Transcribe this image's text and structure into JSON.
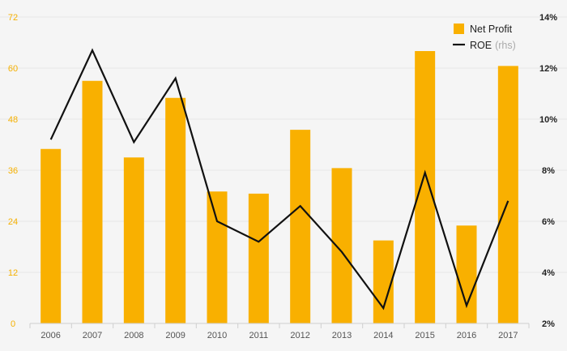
{
  "chart_data": {
    "type": "bar",
    "categories": [
      "2006",
      "2007",
      "2008",
      "2009",
      "2010",
      "2011",
      "2012",
      "2013",
      "2014",
      "2015",
      "2016",
      "2017"
    ],
    "series": [
      {
        "name": "Net Profit",
        "type": "bar",
        "axis": "left",
        "color": "#f9b000",
        "values": [
          41,
          57,
          39,
          53,
          31,
          30.5,
          45.5,
          36.5,
          19.5,
          64,
          23,
          60.5
        ]
      },
      {
        "name": "ROE",
        "name_suffix": "(rhs)",
        "type": "line",
        "axis": "right",
        "color": "#111111",
        "values": [
          9.2,
          12.7,
          9.1,
          11.6,
          6.0,
          5.2,
          6.6,
          4.8,
          2.6,
          7.9,
          2.7,
          6.8
        ]
      }
    ],
    "y_left": {
      "ylim": [
        0,
        72
      ],
      "ticks": [
        "0",
        "12",
        "24",
        "36",
        "48",
        "60",
        "72"
      ]
    },
    "y_right": {
      "ylim": [
        2,
        14
      ],
      "ticks": [
        "2%",
        "4%",
        "6%",
        "8%",
        "10%",
        "12%",
        "14%"
      ]
    },
    "grid": true,
    "legend_position": "top-right",
    "title": "",
    "xlabel": "",
    "ylabel": ""
  }
}
